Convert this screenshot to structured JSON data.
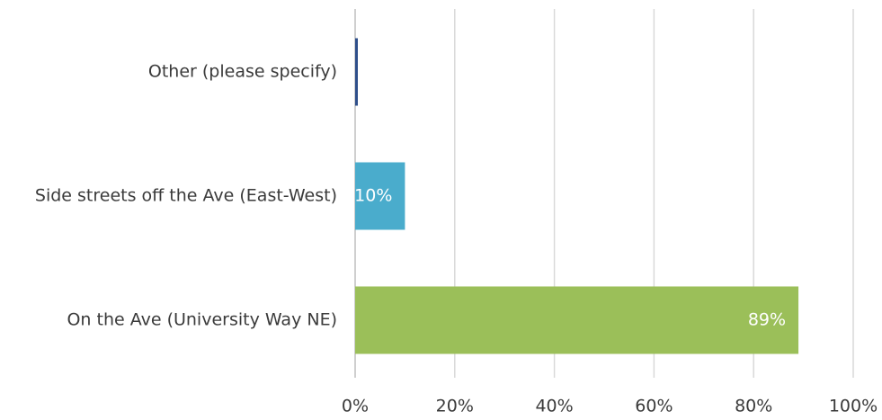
{
  "chart_data": {
    "type": "bar",
    "orientation": "horizontal",
    "title": "",
    "xlabel": "",
    "ylabel": "",
    "categories": [
      "Other (please specify)",
      "Side streets off the Ave (East-West)",
      "On the Ave (University Way NE)"
    ],
    "values": [
      0.5,
      10,
      89
    ],
    "data_labels": [
      "",
      "10%",
      "89%"
    ],
    "colors": [
      "#2e4f8a",
      "#4aaccc",
      "#9bbf59"
    ],
    "xlim": [
      0,
      100
    ],
    "x_ticks": [
      0,
      20,
      40,
      60,
      80,
      100
    ],
    "x_tick_labels": [
      "0%",
      "20%",
      "40%",
      "60%",
      "80%",
      "100%"
    ],
    "grid": true,
    "legend": false
  }
}
